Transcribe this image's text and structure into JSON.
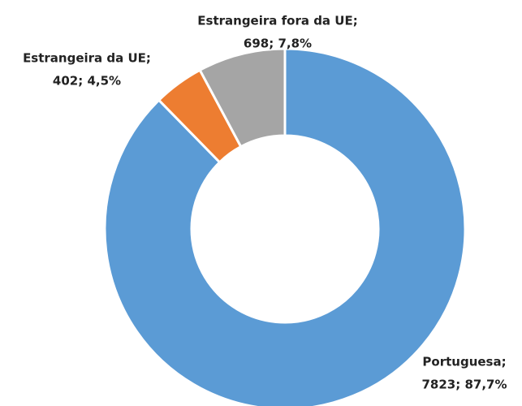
{
  "chart_data": {
    "type": "donut",
    "categories": [
      "Portuguesa;",
      "Estrangeira da UE;",
      "Estrangeira fora da UE;"
    ],
    "values": [
      7823,
      402,
      698
    ],
    "value_labels": [
      "7823; 87,7%",
      "402; 4,5%",
      "698; 7,8%"
    ],
    "colors": [
      "#5b9bd5",
      "#ed7d31",
      "#a5a5a5"
    ]
  }
}
